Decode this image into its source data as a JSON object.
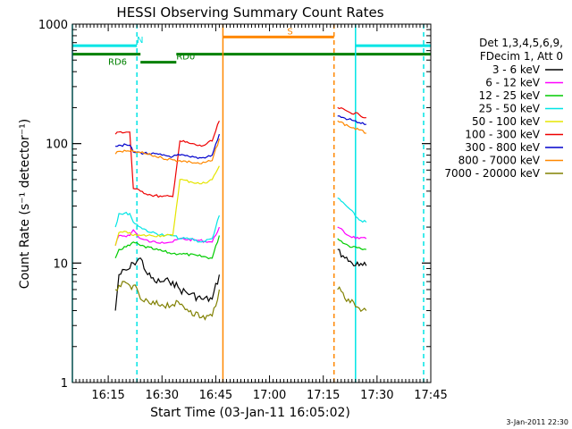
{
  "chart_data": {
    "type": "line",
    "title": "HESSI Observing Summary Count Rates",
    "xlabel": "Start Time (03-Jan-11 16:05:02)",
    "ylabel": "Count Rate (s⁻¹ detector⁻¹)",
    "yscale": "log",
    "ylim": [
      1,
      1000
    ],
    "xlim": [
      "16:05",
      "17:45"
    ],
    "x_ticks": [
      "16:15",
      "16:30",
      "16:45",
      "17:00",
      "17:15",
      "17:30",
      "17:45"
    ],
    "y_ticks": [
      "1",
      "10",
      "100",
      "1000"
    ],
    "footer": "3-Jan-2011 22:30",
    "legend_header": [
      "Det 1,3,4,5,6,9,",
      "FDecim 1, Att 0"
    ],
    "legend_placement": "right",
    "series": [
      {
        "name": "3 - 6 keV",
        "color": "#000000",
        "data": [
          [
            "16:17",
            4
          ],
          [
            "16:18",
            8
          ],
          [
            "16:21",
            9
          ],
          [
            "16:22",
            10
          ],
          [
            "16:24",
            11
          ],
          [
            "16:26",
            8
          ],
          [
            "16:28",
            7
          ],
          [
            "16:30",
            7
          ],
          [
            "16:32",
            7
          ],
          [
            "16:33",
            7
          ],
          [
            "16:35",
            6
          ],
          [
            "16:38",
            5.5
          ],
          [
            "16:41",
            5
          ],
          [
            "16:44",
            5
          ],
          [
            "16:46",
            8
          ],
          [
            "17:19",
            13
          ],
          [
            "17:21",
            11
          ],
          [
            "17:23",
            10
          ],
          [
            "17:25",
            9.5
          ],
          [
            "17:27",
            9.5
          ]
        ]
      },
      {
        "name": "6 - 12 keV",
        "color": "#ff00ff",
        "data": [
          [
            "16:17",
            14
          ],
          [
            "16:18",
            17
          ],
          [
            "16:21",
            17
          ],
          [
            "16:22",
            19
          ],
          [
            "16:24",
            16
          ],
          [
            "16:27",
            15
          ],
          [
            "16:30",
            15
          ],
          [
            "16:33",
            15
          ],
          [
            "16:35",
            16
          ],
          [
            "16:40",
            15.5
          ],
          [
            "16:44",
            15
          ],
          [
            "16:46",
            20
          ],
          [
            "17:19",
            20
          ],
          [
            "17:22",
            17
          ],
          [
            "17:25",
            16
          ],
          [
            "17:27",
            16
          ]
        ]
      },
      {
        "name": "12 - 25 keV",
        "color": "#00cc00",
        "data": [
          [
            "16:17",
            11
          ],
          [
            "16:18",
            13
          ],
          [
            "16:21",
            14
          ],
          [
            "16:22",
            15
          ],
          [
            "16:24",
            14
          ],
          [
            "16:28",
            13
          ],
          [
            "16:33",
            12
          ],
          [
            "16:35",
            12
          ],
          [
            "16:40",
            11.5
          ],
          [
            "16:44",
            11
          ],
          [
            "16:46",
            17
          ],
          [
            "17:19",
            16
          ],
          [
            "17:22",
            14
          ],
          [
            "17:25",
            13.5
          ],
          [
            "17:27",
            13
          ]
        ]
      },
      {
        "name": "25 - 50 keV",
        "color": "#00e5e5",
        "data": [
          [
            "16:17",
            20
          ],
          [
            "16:18",
            26
          ],
          [
            "16:21",
            26
          ],
          [
            "16:22",
            22
          ],
          [
            "16:24",
            20
          ],
          [
            "16:27",
            18
          ],
          [
            "16:31",
            17
          ],
          [
            "16:33",
            17
          ],
          [
            "16:35",
            16
          ],
          [
            "16:38",
            16
          ],
          [
            "16:41",
            15
          ],
          [
            "16:44",
            16
          ],
          [
            "16:46",
            25
          ],
          [
            "17:19",
            35
          ],
          [
            "17:22",
            29
          ],
          [
            "17:25",
            23
          ],
          [
            "17:27",
            22
          ]
        ]
      },
      {
        "name": "50 - 100 keV",
        "color": "#e5e500",
        "data": [
          [
            "16:17",
            14
          ],
          [
            "16:18",
            18
          ],
          [
            "16:21",
            18
          ],
          [
            "16:22",
            17
          ],
          [
            "16:24",
            17
          ],
          [
            "16:27",
            17
          ],
          [
            "16:30",
            17
          ],
          [
            "16:33",
            17
          ],
          [
            "16:35",
            50
          ],
          [
            "16:38",
            48
          ],
          [
            "16:41",
            46
          ],
          [
            "16:44",
            50
          ],
          [
            "16:46",
            65
          ]
        ]
      },
      {
        "name": "100 - 300 keV",
        "color": "#ee0000",
        "data": [
          [
            "16:17",
            120
          ],
          [
            "16:18",
            125
          ],
          [
            "16:21",
            125
          ],
          [
            "16:22",
            42
          ],
          [
            "16:24",
            40
          ],
          [
            "16:27",
            37
          ],
          [
            "16:30",
            36
          ],
          [
            "16:33",
            36
          ],
          [
            "16:35",
            105
          ],
          [
            "16:38",
            100
          ],
          [
            "16:41",
            95
          ],
          [
            "16:44",
            105
          ],
          [
            "16:46",
            155
          ],
          [
            "17:19",
            200
          ],
          [
            "17:22",
            185
          ],
          [
            "17:25",
            175
          ],
          [
            "17:27",
            165
          ]
        ]
      },
      {
        "name": "300 - 800 keV",
        "color": "#0000cc",
        "data": [
          [
            "16:17",
            95
          ],
          [
            "16:18",
            97
          ],
          [
            "16:21",
            97
          ],
          [
            "16:22",
            85
          ],
          [
            "16:24",
            84
          ],
          [
            "16:27",
            82
          ],
          [
            "16:30",
            80
          ],
          [
            "16:33",
            78
          ],
          [
            "16:35",
            80
          ],
          [
            "16:38",
            77
          ],
          [
            "16:41",
            76
          ],
          [
            "16:44",
            80
          ],
          [
            "16:46",
            120
          ],
          [
            "17:19",
            170
          ],
          [
            "17:22",
            160
          ],
          [
            "17:25",
            150
          ],
          [
            "17:27",
            145
          ]
        ]
      },
      {
        "name": "800 - 7000 keV",
        "color": "#ff8800",
        "data": [
          [
            "16:17",
            82
          ],
          [
            "16:18",
            86
          ],
          [
            "16:21",
            86
          ],
          [
            "16:22",
            86
          ],
          [
            "16:24",
            84
          ],
          [
            "16:27",
            80
          ],
          [
            "16:30",
            76
          ],
          [
            "16:33",
            73
          ],
          [
            "16:35",
            72
          ],
          [
            "16:38",
            70
          ],
          [
            "16:41",
            68
          ],
          [
            "16:44",
            72
          ],
          [
            "16:46",
            110
          ],
          [
            "17:19",
            155
          ],
          [
            "17:22",
            140
          ],
          [
            "17:25",
            130
          ],
          [
            "17:27",
            122
          ]
        ]
      },
      {
        "name": "7000 - 20000 keV",
        "color": "#808000",
        "data": [
          [
            "16:17",
            6
          ],
          [
            "16:18",
            6.5
          ],
          [
            "16:21",
            6.5
          ],
          [
            "16:22",
            6.5
          ],
          [
            "16:24",
            5
          ],
          [
            "16:27",
            4.5
          ],
          [
            "16:30",
            4.5
          ],
          [
            "16:33",
            4.5
          ],
          [
            "16:35",
            4.5
          ],
          [
            "16:38",
            4
          ],
          [
            "16:41",
            3.5
          ],
          [
            "16:44",
            3.6
          ],
          [
            "16:46",
            6
          ],
          [
            "17:19",
            6
          ],
          [
            "17:22",
            5
          ],
          [
            "17:25",
            4.2
          ],
          [
            "17:27",
            4
          ]
        ]
      }
    ],
    "markers": {
      "vlines": [
        {
          "t": "16:05",
          "color": "#00e5e5",
          "style": "solid"
        },
        {
          "t": "16:23",
          "color": "#00e5e5",
          "style": "dashed"
        },
        {
          "t": "16:47",
          "color": "#ff8800",
          "style": "solid"
        },
        {
          "t": "17:18",
          "color": "#ff8800",
          "style": "dashed"
        },
        {
          "t": "17:24",
          "color": "#00e5e5",
          "style": "solid"
        },
        {
          "t": "17:43",
          "color": "#00e5e5",
          "style": "dashed"
        }
      ],
      "bars": [
        {
          "label": "N",
          "t0": "16:05",
          "t1": "16:23",
          "y": 660,
          "color": "#00e5e5"
        },
        {
          "label": "",
          "t0": "17:24",
          "t1": "17:45",
          "y": 660,
          "color": "#00e5e5"
        },
        {
          "label": "S",
          "t0": "16:47",
          "t1": "17:18",
          "y": 780,
          "color": "#ff8800"
        },
        {
          "label": "RD6",
          "t0": "16:05",
          "t1": "16:24",
          "y": 560,
          "color": "#008000"
        },
        {
          "label": "RD0",
          "t0": "16:24",
          "t1": "16:34",
          "y": 480,
          "color": "#008000"
        },
        {
          "label": "",
          "t0": "16:34",
          "t1": "17:45",
          "y": 560,
          "color": "#008000"
        }
      ]
    }
  }
}
